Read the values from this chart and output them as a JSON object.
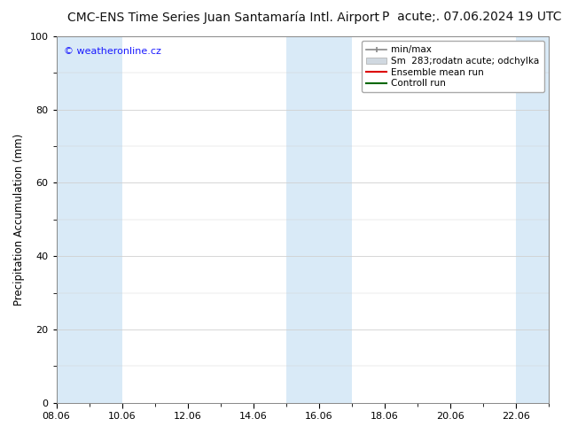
{
  "title_left": "CMC-ENS Time Series Juan Santamaría Intl. Airport",
  "title_right": "P  acute;. 07.06.2024 19 UTC",
  "ylabel": "Precipitation Accumulation (mm)",
  "ylim": [
    0,
    100
  ],
  "yticks": [
    0,
    20,
    40,
    60,
    80,
    100
  ],
  "xlim_start": 0,
  "xlim_end": 15,
  "xtick_labels": [
    "08.06",
    "10.06",
    "12.06",
    "14.06",
    "16.06",
    "18.06",
    "20.06",
    "22.06"
  ],
  "xtick_positions": [
    0,
    2,
    4,
    6,
    8,
    10,
    12,
    14
  ],
  "shaded_bands": [
    [
      0,
      1
    ],
    [
      1,
      2
    ],
    [
      7,
      8
    ],
    [
      8,
      9
    ],
    [
      14,
      15
    ]
  ],
  "band_color": "#d9eaf7",
  "background_color": "#ffffff",
  "watermark": "© weatheronline.cz",
  "watermark_color": "#1a1aff",
  "grid_color": "#d0d0d0",
  "title_fontsize": 10,
  "axis_fontsize": 8.5,
  "tick_fontsize": 8,
  "legend_minmax_color": "#888888",
  "legend_sm_facecolor": "#d0d8e0",
  "legend_sm_edgecolor": "#aaaaaa",
  "legend_ens_color": "#dd0000",
  "legend_ctrl_color": "#006600"
}
